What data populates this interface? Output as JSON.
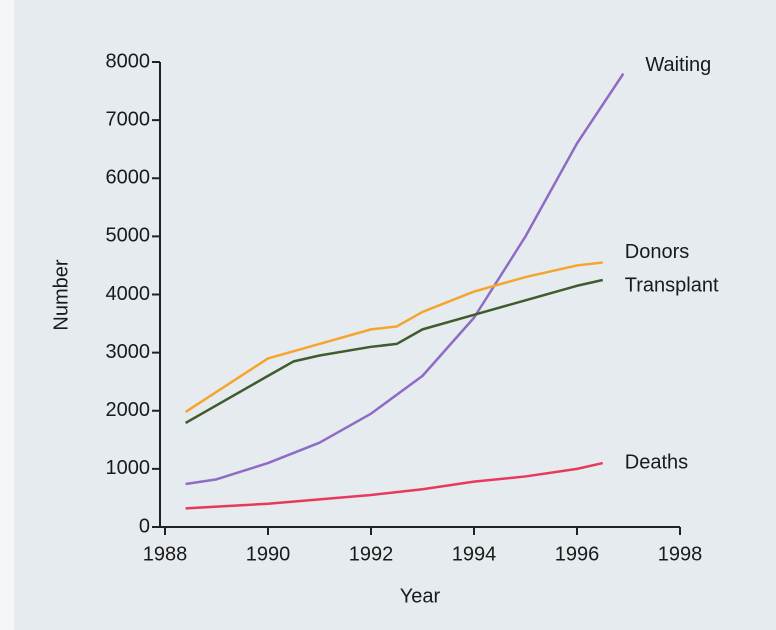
{
  "chart_data": {
    "type": "line",
    "x_label": "Year",
    "y_label": "Number",
    "xlim": [
      1988,
      1998
    ],
    "xticks": [
      1988,
      1990,
      1992,
      1994,
      1996,
      1998
    ],
    "ylim": [
      0,
      8000
    ],
    "yticks": [
      0,
      1000,
      2000,
      3000,
      4000,
      5000,
      6000,
      7000,
      8000
    ],
    "series": [
      {
        "name": "Waiting",
        "color": "#8f6cc4",
        "x": [
          1988.4,
          1989,
          1990,
          1991,
          1992,
          1993,
          1994,
          1995,
          1996,
          1996.9
        ],
        "values": [
          740,
          820,
          1100,
          1450,
          1950,
          2600,
          3600,
          5000,
          6600,
          7800
        ]
      },
      {
        "name": "Donors",
        "color": "#f5a52c",
        "x": [
          1988.4,
          1990,
          1991,
          1992,
          1992.5,
          1993,
          1994,
          1995,
          1996,
          1996.5
        ],
        "values": [
          1980,
          2900,
          3150,
          3400,
          3450,
          3700,
          4050,
          4300,
          4500,
          4550
        ]
      },
      {
        "name": "Transplant",
        "color": "#3f5c2c",
        "x": [
          1988.4,
          1990,
          1990.5,
          1991,
          1992,
          1992.5,
          1993,
          1994,
          1995,
          1996,
          1996.5
        ],
        "values": [
          1790,
          2600,
          2850,
          2950,
          3100,
          3150,
          3400,
          3650,
          3900,
          4150,
          4250
        ]
      },
      {
        "name": "Deaths",
        "color": "#e8395c",
        "x": [
          1988.4,
          1990,
          1992,
          1993,
          1994,
          1995,
          1996,
          1996.5
        ],
        "values": [
          320,
          400,
          550,
          650,
          780,
          870,
          1000,
          1100
        ]
      }
    ]
  }
}
